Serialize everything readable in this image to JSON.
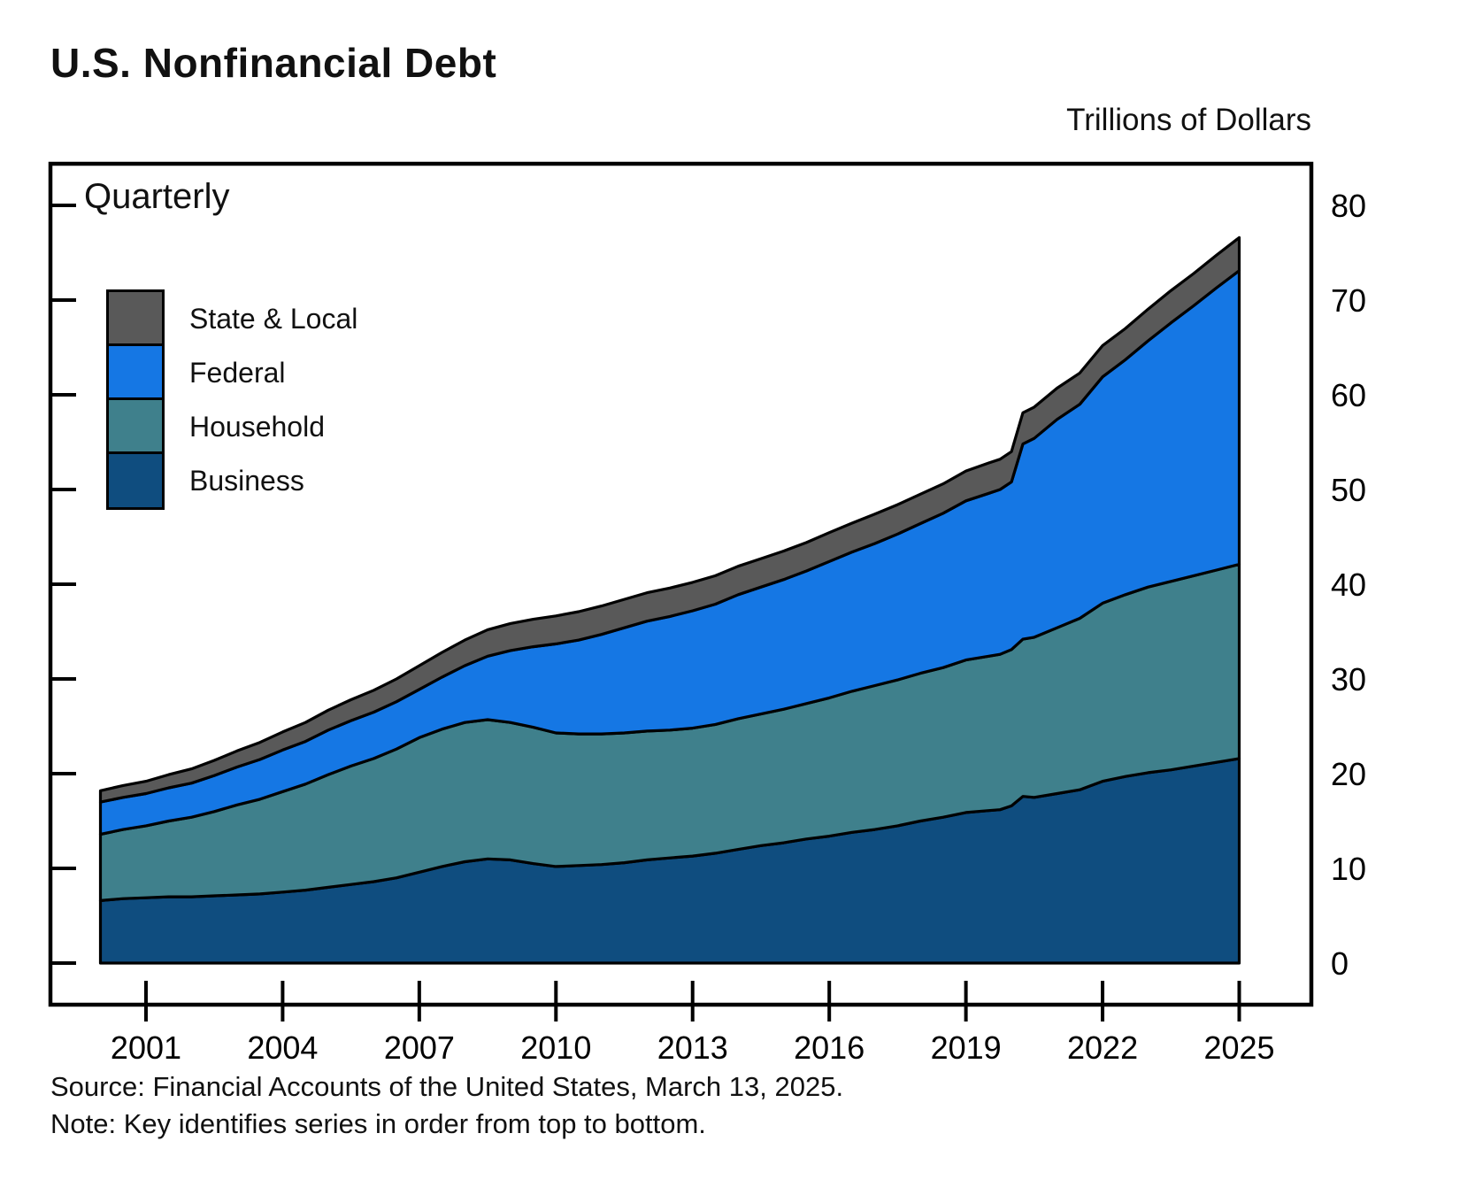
{
  "page": {
    "title": "U.S. Nonfinancial Debt",
    "units_label": "Trillions of Dollars",
    "frequency_label": "Quarterly",
    "source": "Source: Financial Accounts of the United States, March 13, 2025.",
    "note": "Note: Key identifies series in order from top to bottom."
  },
  "legend": [
    {
      "label": "State & Local",
      "color": "#595959"
    },
    {
      "label": "Federal",
      "color": "#1577e4"
    },
    {
      "label": "Household",
      "color": "#3f808c"
    },
    {
      "label": "Business",
      "color": "#0f4d7f"
    }
  ],
  "chart_data": {
    "type": "area",
    "stacked": true,
    "title": "U.S. Nonfinancial Debt",
    "subtitle": "Quarterly",
    "ylabel": "Trillions of Dollars",
    "ylim": [
      0,
      80
    ],
    "xlim": [
      2000,
      2025
    ],
    "grid": false,
    "legend_position": "upper-left",
    "legend_order_top_to_bottom": [
      "State & Local",
      "Federal",
      "Household",
      "Business"
    ],
    "y_ticks": [
      0,
      10,
      20,
      30,
      40,
      50,
      60,
      70,
      80
    ],
    "x_ticks": [
      2001,
      2004,
      2007,
      2010,
      2013,
      2016,
      2019,
      2022,
      2025
    ],
    "x": [
      2000,
      2000.5,
      2001,
      2001.5,
      2002,
      2002.5,
      2003,
      2003.5,
      2004,
      2004.5,
      2005,
      2005.5,
      2006,
      2006.5,
      2007,
      2007.5,
      2008,
      2008.5,
      2009,
      2009.5,
      2010,
      2010.5,
      2011,
      2011.5,
      2012,
      2012.5,
      2013,
      2013.5,
      2014,
      2014.5,
      2015,
      2015.5,
      2016,
      2016.5,
      2017,
      2017.5,
      2018,
      2018.5,
      2019,
      2019.5,
      2019.75,
      2020,
      2020.25,
      2020.5,
      2021,
      2021.5,
      2022,
      2022.5,
      2023,
      2023.5,
      2024,
      2024.5,
      2025
    ],
    "series": [
      {
        "name": "Business",
        "color": "#0f4d7f",
        "values": [
          6.6,
          6.8,
          6.9,
          7.0,
          7.0,
          7.1,
          7.2,
          7.3,
          7.5,
          7.7,
          8.0,
          8.3,
          8.6,
          9.0,
          9.6,
          10.2,
          10.7,
          11.0,
          10.9,
          10.5,
          10.2,
          10.3,
          10.4,
          10.6,
          10.9,
          11.1,
          11.3,
          11.6,
          12.0,
          12.4,
          12.7,
          13.1,
          13.4,
          13.8,
          14.1,
          14.5,
          15.0,
          15.4,
          15.9,
          16.1,
          16.2,
          16.6,
          17.6,
          17.5,
          17.9,
          18.3,
          19.2,
          19.7,
          20.1,
          20.4,
          20.8,
          21.2,
          21.6
        ]
      },
      {
        "name": "Household",
        "color": "#3f808c",
        "values": [
          7.0,
          7.3,
          7.6,
          8.0,
          8.4,
          8.9,
          9.5,
          10.0,
          10.6,
          11.2,
          11.9,
          12.5,
          13.0,
          13.6,
          14.2,
          14.5,
          14.7,
          14.7,
          14.5,
          14.4,
          14.1,
          13.9,
          13.8,
          13.7,
          13.6,
          13.5,
          13.5,
          13.6,
          13.8,
          13.9,
          14.1,
          14.3,
          14.6,
          14.9,
          15.2,
          15.4,
          15.6,
          15.8,
          16.1,
          16.3,
          16.4,
          16.5,
          16.6,
          16.9,
          17.5,
          18.1,
          18.8,
          19.2,
          19.6,
          19.9,
          20.1,
          20.3,
          20.5
        ]
      },
      {
        "name": "Federal",
        "color": "#1577e4",
        "values": [
          3.4,
          3.4,
          3.4,
          3.5,
          3.6,
          3.8,
          4.0,
          4.2,
          4.4,
          4.5,
          4.7,
          4.8,
          4.9,
          5.0,
          5.1,
          5.5,
          6.0,
          6.7,
          7.6,
          8.5,
          9.4,
          9.9,
          10.5,
          11.1,
          11.6,
          12.0,
          12.4,
          12.7,
          13.1,
          13.4,
          13.7,
          14.0,
          14.4,
          14.7,
          15.0,
          15.4,
          15.8,
          16.3,
          16.8,
          17.2,
          17.4,
          17.7,
          20.6,
          21.0,
          22.0,
          22.6,
          23.9,
          24.8,
          26.0,
          27.3,
          28.5,
          29.8,
          31.0
        ]
      },
      {
        "name": "State & Local",
        "color": "#595959",
        "values": [
          1.2,
          1.25,
          1.3,
          1.4,
          1.5,
          1.6,
          1.7,
          1.8,
          1.9,
          2.0,
          2.1,
          2.2,
          2.3,
          2.4,
          2.5,
          2.6,
          2.7,
          2.8,
          2.85,
          2.9,
          2.95,
          3.0,
          3.0,
          3.0,
          3.0,
          3.0,
          3.0,
          3.0,
          3.0,
          3.0,
          3.0,
          3.0,
          3.05,
          3.05,
          3.1,
          3.1,
          3.1,
          3.1,
          3.15,
          3.2,
          3.2,
          3.2,
          3.3,
          3.3,
          3.3,
          3.3,
          3.3,
          3.3,
          3.35,
          3.4,
          3.4,
          3.45,
          3.5
        ]
      }
    ]
  }
}
